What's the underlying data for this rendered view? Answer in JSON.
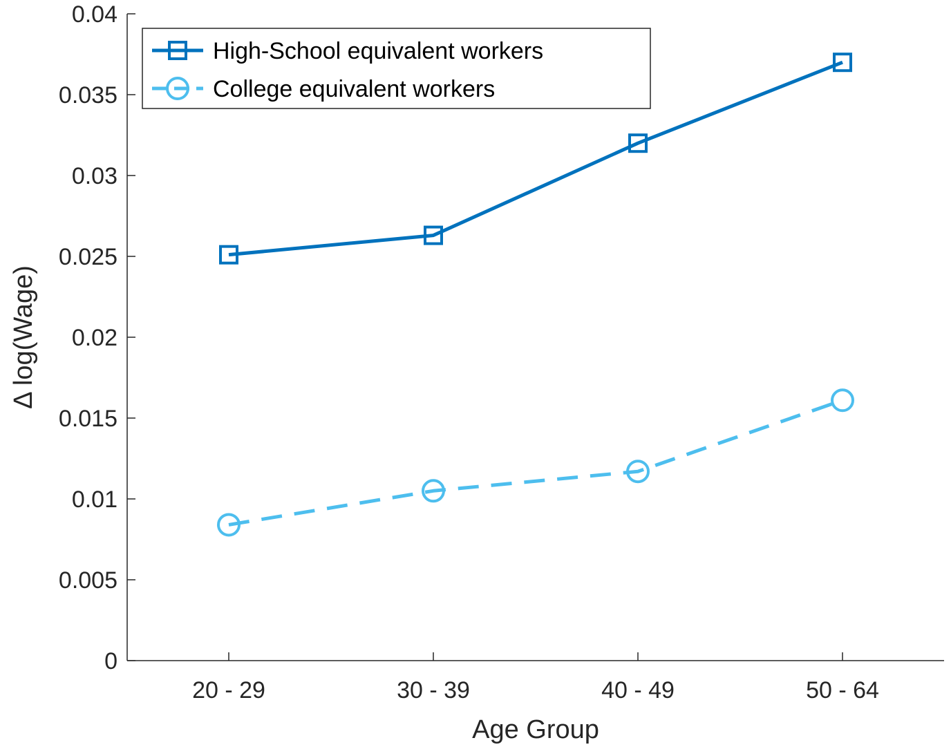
{
  "chart_data": {
    "type": "line",
    "categories": [
      "20 - 29",
      "30 - 39",
      "40 - 49",
      "50 - 64"
    ],
    "series": [
      {
        "name": "High-School equivalent workers",
        "values": [
          0.0251,
          0.0263,
          0.032,
          0.037
        ],
        "color": "#0072BD",
        "marker": "square",
        "line_style": "solid"
      },
      {
        "name": "College equivalent workers",
        "values": [
          0.0084,
          0.0105,
          0.0117,
          0.0161
        ],
        "color": "#4DBEEE",
        "marker": "circle",
        "line_style": "dashed"
      }
    ],
    "title": "",
    "xlabel": "Age Group",
    "ylabel": "Δ log(Wage)",
    "ylim": [
      0,
      0.04
    ],
    "yticks": [
      "0",
      "0.005",
      "0.01",
      "0.015",
      "0.02",
      "0.025",
      "0.03",
      "0.035",
      "0.04"
    ],
    "grid": false,
    "legend_position": "top-left"
  }
}
